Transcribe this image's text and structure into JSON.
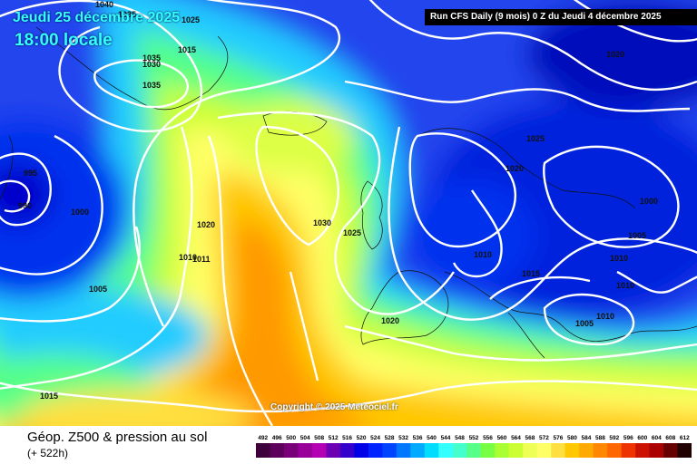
{
  "header": {
    "date_title": "Jeudi 25 décembre 2025",
    "time_title": "18:00 locale",
    "run_info": "Run CFS Daily (9 mois) 0 Z du Jeudi 4 décembre 2025"
  },
  "map": {
    "copyright": "Copyright © 2025 Meteociel.fr",
    "pressure_labels": [
      "1040",
      "1035",
      "1025",
      "1035",
      "1030",
      "1015",
      "1035",
      "995",
      "990",
      "1000",
      "1020",
      "1010",
      "1011",
      "1005",
      "1015",
      "1030",
      "1025",
      "1020",
      "1020",
      "1025",
      "1020",
      "1000",
      "1005",
      "1010",
      "1015",
      "1010",
      "1010",
      "1005",
      "1010"
    ]
  },
  "legend": {
    "field_title": "Géop. Z500 & pression au sol",
    "lead_time": "(+ 522h)",
    "scale_values": [
      "492",
      "496",
      "500",
      "504",
      "508",
      "512",
      "516",
      "520",
      "524",
      "528",
      "532",
      "536",
      "540",
      "544",
      "548",
      "552",
      "556",
      "560",
      "564",
      "568",
      "572",
      "576",
      "580",
      "584",
      "588",
      "592",
      "596",
      "600",
      "604",
      "608",
      "612"
    ],
    "scale_colors": [
      "#3d003d",
      "#5c005c",
      "#7a007a",
      "#990099",
      "#b300b3",
      "#6e00b3",
      "#3300cc",
      "#0000e6",
      "#0022ff",
      "#0044ff",
      "#0077ff",
      "#00aaff",
      "#00ddff",
      "#33ffff",
      "#44ffcc",
      "#55ff88",
      "#77ff44",
      "#aaff33",
      "#ccff33",
      "#eeff55",
      "#ffff66",
      "#ffe040",
      "#ffc800",
      "#ffaa00",
      "#ff8800",
      "#ff6600",
      "#ee3300",
      "#cc1100",
      "#aa0000",
      "#660000",
      "#200000"
    ]
  }
}
